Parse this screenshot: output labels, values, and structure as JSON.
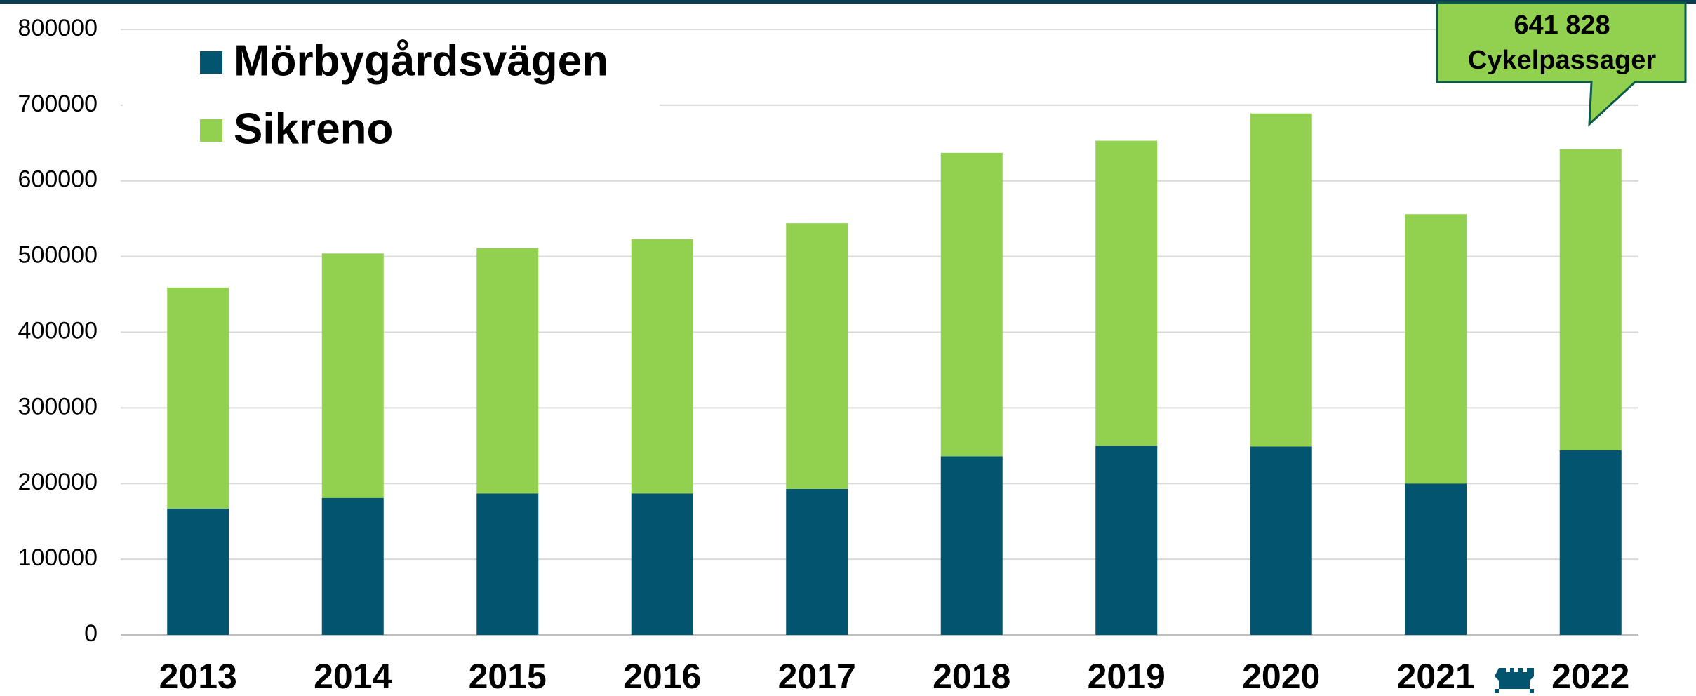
{
  "chart_data": {
    "type": "stacked_bar",
    "categories": [
      "2013",
      "2014",
      "2015",
      "2016",
      "2017",
      "2018",
      "2019",
      "2020",
      "2021",
      "2022"
    ],
    "series": [
      {
        "name": "Mörbygårdsvägen",
        "color": "#03546f",
        "values": [
          167000,
          181000,
          187000,
          187000,
          193000,
          236000,
          250000,
          249000,
          200000,
          244000
        ]
      },
      {
        "name": "Sikreno",
        "color": "#92d050",
        "values": [
          292000,
          323000,
          324000,
          336000,
          351000,
          401000,
          403000,
          440000,
          356000,
          397828
        ]
      }
    ],
    "ylim": [
      0,
      800000
    ],
    "yticks": [
      0,
      100000,
      200000,
      300000,
      400000,
      500000,
      600000,
      700000,
      800000
    ],
    "grid": true,
    "legend": "upper left",
    "annotation": [
      "641 828",
      "Cykelpassager"
    ]
  }
}
